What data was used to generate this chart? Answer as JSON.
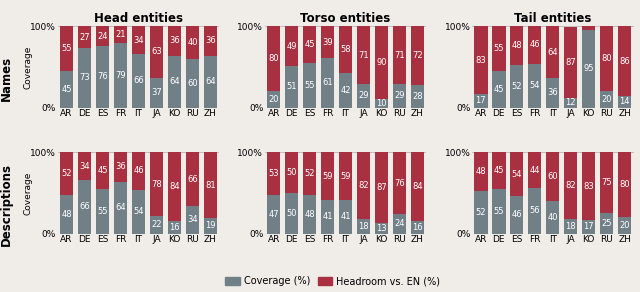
{
  "categories": [
    "AR",
    "DE",
    "ES",
    "FR",
    "IT",
    "JA",
    "KO",
    "RU",
    "ZH"
  ],
  "col_titles": [
    "Head entities",
    "Torso entities",
    "Tail entities"
  ],
  "row_titles": [
    "Names",
    "Descriptions"
  ],
  "coverage_color": "#717f87",
  "headroom_color": "#a83040",
  "background_color": "#f0ede8",
  "data": {
    "Names": {
      "Head": {
        "coverage": [
          45,
          73,
          76,
          79,
          66,
          37,
          64,
          60,
          64
        ],
        "headroom": [
          55,
          27,
          24,
          21,
          34,
          63,
          36,
          40,
          36
        ]
      },
      "Torso": {
        "coverage": [
          20,
          51,
          55,
          61,
          42,
          29,
          10,
          29,
          28
        ],
        "headroom": [
          80,
          49,
          45,
          39,
          58,
          71,
          90,
          71,
          72
        ]
      },
      "Tail": {
        "coverage": [
          17,
          45,
          52,
          54,
          36,
          12,
          95,
          20,
          14
        ],
        "headroom": [
          83,
          55,
          48,
          46,
          64,
          87,
          5,
          80,
          86
        ]
      }
    },
    "Descriptions": {
      "Head": {
        "coverage": [
          48,
          66,
          55,
          64,
          54,
          22,
          16,
          34,
          19
        ],
        "headroom": [
          52,
          34,
          45,
          36,
          46,
          78,
          84,
          66,
          81
        ]
      },
      "Torso": {
        "coverage": [
          47,
          50,
          48,
          41,
          41,
          18,
          13,
          24,
          16
        ],
        "headroom": [
          53,
          50,
          52,
          59,
          59,
          82,
          87,
          76,
          84
        ]
      },
      "Tail": {
        "coverage": [
          52,
          55,
          46,
          56,
          40,
          18,
          17,
          25,
          20
        ],
        "headroom": [
          48,
          45,
          54,
          44,
          60,
          82,
          83,
          75,
          80
        ]
      }
    }
  },
  "legend_labels": [
    "Coverage (%)",
    "Headroom vs. EN (%)"
  ],
  "title_fontsize": 8.5,
  "label_fontsize": 6.0,
  "tick_fontsize": 6.5,
  "ylabel_fontsize": 6.5,
  "row_label_fontsize": 8.5,
  "bar_width": 0.75
}
